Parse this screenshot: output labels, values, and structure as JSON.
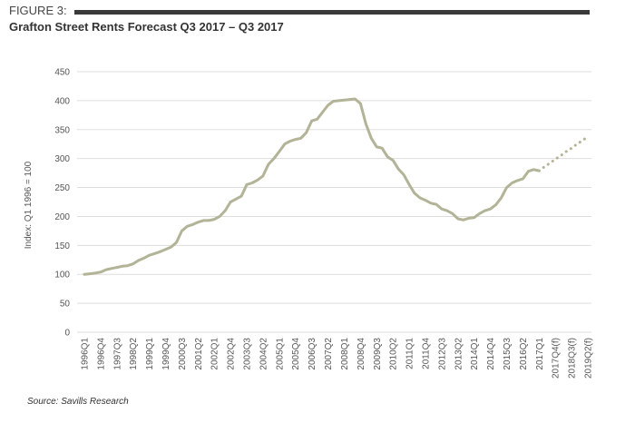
{
  "chart_data": {
    "type": "line",
    "figure_label": "FIGURE 3:",
    "title": "Grafton Street Rents Forecast Q3 2017 – Q3 2017",
    "y_label": "Index: Q1 1996 = 100",
    "source": "Source: Savills Research",
    "categories": [
      "1996Q1",
      null,
      null,
      "1996Q4",
      null,
      null,
      "1997Q3",
      null,
      null,
      "1998Q2",
      null,
      null,
      "1999Q1",
      null,
      null,
      "1999Q4",
      null,
      null,
      "2000Q3",
      null,
      null,
      "2001Q2",
      null,
      null,
      "2002Q1",
      null,
      null,
      "2002Q4",
      null,
      null,
      "2003Q3",
      null,
      null,
      "2004Q2",
      null,
      null,
      "2005Q1",
      null,
      null,
      "2005Q4",
      null,
      null,
      "2006Q3",
      null,
      null,
      "2007Q2",
      null,
      null,
      "2008Q1",
      null,
      null,
      "2008Q4",
      null,
      null,
      "2009Q3",
      null,
      null,
      "2010Q2",
      null,
      null,
      "2011Q1",
      null,
      null,
      "2011Q4",
      null,
      null,
      "2012Q3",
      null,
      null,
      "2013Q2",
      null,
      null,
      "2014Q1",
      null,
      null,
      "2014Q4",
      null,
      null,
      "2015Q3",
      null,
      null,
      "2016Q2",
      null,
      null,
      "2017Q1",
      null,
      null,
      "2017Q4(f)",
      null,
      null,
      "2018Q3(f)",
      null,
      null,
      "2019Q2(f)"
    ],
    "series": [
      {
        "color": "#b3b398",
        "style": "solid",
        "values": [
          100,
          101,
          102,
          104,
          108,
          110,
          112,
          114,
          115,
          118,
          124,
          128,
          133,
          136,
          139,
          143,
          147,
          155,
          175,
          183,
          186,
          190,
          193,
          193,
          195,
          200,
          210,
          225,
          230,
          235,
          255,
          258,
          263,
          270,
          290,
          300,
          312,
          325,
          330,
          333,
          335,
          345,
          365,
          368,
          380,
          392,
          399,
          400,
          401,
          402,
          403,
          395,
          360,
          335,
          320,
          318,
          303,
          297,
          282,
          272,
          255,
          240,
          232,
          228,
          223,
          221,
          213,
          210,
          205,
          196,
          194,
          197,
          198,
          205,
          210,
          213,
          220,
          232,
          250,
          258,
          262,
          265,
          278,
          281,
          279,
          null,
          null,
          null,
          null,
          null,
          null,
          null,
          null,
          null
        ]
      },
      {
        "color": "#b3b398",
        "style": "dotted",
        "values": [
          null,
          null,
          null,
          null,
          null,
          null,
          null,
          null,
          null,
          null,
          null,
          null,
          null,
          null,
          null,
          null,
          null,
          null,
          null,
          null,
          null,
          null,
          null,
          null,
          null,
          null,
          null,
          null,
          null,
          null,
          null,
          null,
          null,
          null,
          null,
          null,
          null,
          null,
          null,
          null,
          null,
          null,
          null,
          null,
          null,
          null,
          null,
          null,
          null,
          null,
          null,
          null,
          null,
          null,
          null,
          null,
          null,
          null,
          null,
          null,
          null,
          null,
          null,
          null,
          null,
          null,
          null,
          null,
          null,
          null,
          null,
          null,
          null,
          null,
          null,
          null,
          null,
          null,
          null,
          null,
          null,
          null,
          null,
          null,
          279,
          286,
          292,
          299,
          305,
          312,
          318,
          325,
          331,
          338
        ]
      }
    ],
    "ylim": [
      0,
      450
    ],
    "yticks": [
      0,
      50,
      100,
      150,
      200,
      250,
      300,
      350,
      400,
      450
    ],
    "grid": true
  }
}
